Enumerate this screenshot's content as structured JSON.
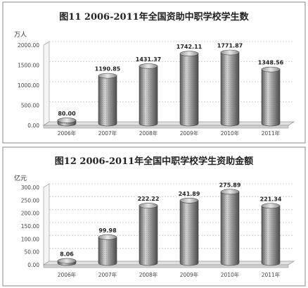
{
  "chart_data": [
    {
      "type": "bar",
      "title": "图11   2006-2011年全国资助中职学校学生数",
      "ylabel": "万人",
      "ylim": [
        0,
        2000
      ],
      "yticks": [
        "2000.00",
        "1500.00",
        "1000.00",
        "500.00",
        "0.00"
      ],
      "categories": [
        "2006年",
        "2007年",
        "2008年",
        "2009年",
        "2010年",
        "2011年"
      ],
      "values": [
        80.0,
        1190.85,
        1431.37,
        1742.11,
        1771.87,
        1348.56
      ],
      "data_labels": [
        "80.00",
        "1190.85",
        "1431.37",
        "1742.11",
        "1771.87",
        "1348.56"
      ],
      "bar_style": "3d-cylinder",
      "colors": {
        "bar": "#8a8a8a",
        "grid": "#bdbdbd"
      }
    },
    {
      "type": "bar",
      "title": "图12   2006-2011年全国中职学校学生资助金额",
      "ylabel": "亿元",
      "ylim": [
        0,
        300
      ],
      "yticks": [
        "300.00",
        "250.00",
        "200.00",
        "150.00",
        "100.00",
        "50.00",
        "0.00"
      ],
      "categories": [
        "2006年",
        "2007年",
        "2008年",
        "2009年",
        "2010年",
        "2011年"
      ],
      "values": [
        8.06,
        99.98,
        222.22,
        241.89,
        275.89,
        221.34
      ],
      "data_labels": [
        "8.06",
        "99.98",
        "222.22",
        "241.89",
        "275.89",
        "221.34"
      ],
      "bar_style": "3d-cylinder",
      "colors": {
        "bar": "#8a8a8a",
        "grid": "#bdbdbd"
      }
    }
  ]
}
